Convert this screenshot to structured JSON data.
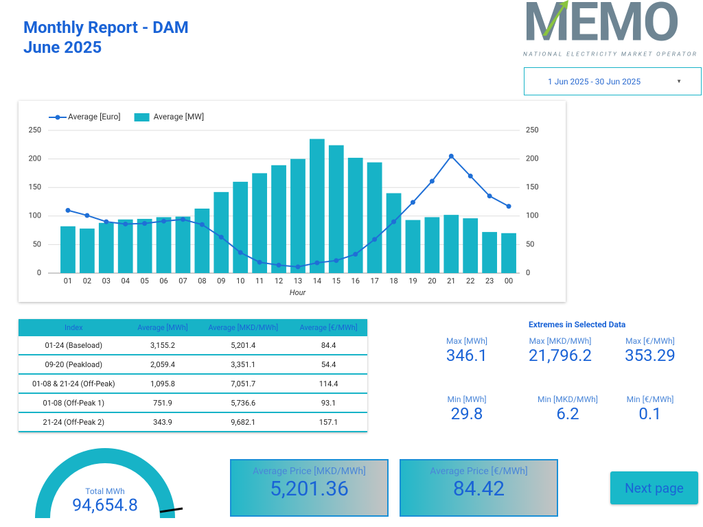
{
  "header": {
    "title": "Monthly Report - DAM",
    "subtitle": "June 2025",
    "logo": "MEMO",
    "logo_caption": "NATIONAL ELECTRICITY MARKET OPERATOR",
    "date_range": "1 Jun 2025 - 30 Jun 2025"
  },
  "chart_data": {
    "type": "bar",
    "x_label": "Hour",
    "categories": [
      "01",
      "02",
      "03",
      "04",
      "05",
      "06",
      "07",
      "08",
      "09",
      "10",
      "11",
      "12",
      "13",
      "14",
      "15",
      "16",
      "17",
      "18",
      "19",
      "20",
      "21",
      "22",
      "23",
      "00"
    ],
    "series": [
      {
        "name": "Average [Euro]",
        "type": "line",
        "axis": "y2",
        "color": "#1f6fd6",
        "values": [
          110,
          101,
          90,
          86,
          87,
          91,
          94,
          85,
          63,
          36,
          19,
          14,
          11,
          18,
          22,
          33,
          59,
          90,
          124,
          161,
          205,
          170,
          135,
          117
        ]
      },
      {
        "name": "Average [MW]",
        "type": "bar",
        "color": "#17b3c7",
        "values": [
          82,
          78,
          88,
          94,
          95,
          98,
          99,
          113,
          142,
          160,
          175,
          189,
          200,
          235,
          224,
          202,
          194,
          140,
          93,
          98,
          102,
          96,
          72,
          70
        ]
      }
    ],
    "ylim": [
      0,
      250
    ],
    "yticks": [
      0,
      50,
      100,
      150,
      200,
      250
    ],
    "y2lim": [
      0,
      250
    ],
    "y2ticks": [
      0,
      50,
      100,
      150,
      200,
      250
    ],
    "grid": true,
    "legend": "top-left"
  },
  "table": {
    "columns": [
      "Index",
      "Average [MWh]",
      "Average [MKD/MWh]",
      "Average [€/MWh]"
    ],
    "rows": [
      [
        "01-24 (Baseload)",
        "3,155.2",
        "5,201.4",
        "84.4"
      ],
      [
        "09-20 (Peakload)",
        "2,059.4",
        "3,351.1",
        "54.4"
      ],
      [
        "01-08 & 21-24 (Off-Peak)",
        "1,095.8",
        "7,051.7",
        "114.4"
      ],
      [
        "01-08 (Off-Peak 1)",
        "751.9",
        "5,736.6",
        "93.1"
      ],
      [
        "21-24 (Off-Peak 2)",
        "343.9",
        "9,682.1",
        "157.1"
      ]
    ]
  },
  "extremes": {
    "title": "Extremes in Selected Data",
    "items": [
      {
        "label": "Max [MWh]",
        "value": "346.1"
      },
      {
        "label": "Max [MKD/MWh]",
        "value": "21,796.2"
      },
      {
        "label": "Max [€/MWh]",
        "value": "353.29"
      },
      {
        "label": "Min [MWh]",
        "value": "29.8"
      },
      {
        "label": "Min [MKD/MWh]",
        "value": "6.2"
      },
      {
        "label": "Min [€/MWh]",
        "value": "0.1"
      }
    ]
  },
  "gauge": {
    "label": "Total MWh",
    "value": "94,654.8"
  },
  "kpis": [
    {
      "label": "Average Price [MKD/MWh]",
      "value": "5,201.36"
    },
    {
      "label": "Average Price [€/MWh]",
      "value": "84.42"
    }
  ],
  "button": "Next page"
}
